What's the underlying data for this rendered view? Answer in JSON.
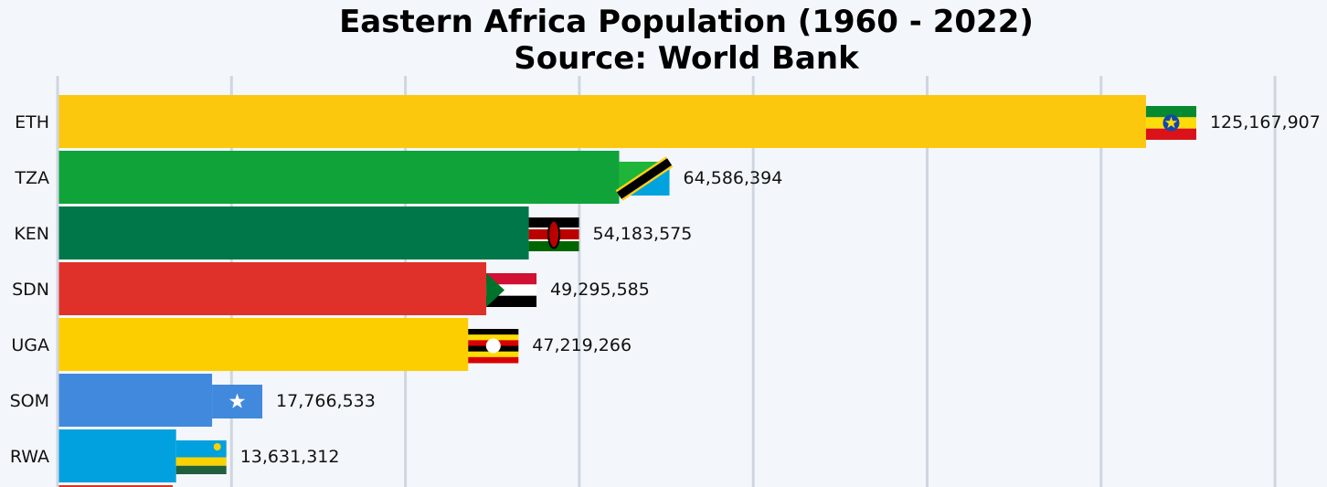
{
  "chart_data": {
    "type": "bar",
    "orientation": "horizontal",
    "title": "Eastern Africa Population (1960 - 2022)",
    "subtitle": "Source: World Bank",
    "categories": [
      "ETH",
      "TZA",
      "KEN",
      "SDN",
      "UGA",
      "SOM",
      "RWA"
    ],
    "values": [
      125167907,
      64586394,
      54183575,
      49295585,
      47219266,
      17766533,
      13631312
    ],
    "value_labels": [
      "125,167,907",
      "64,586,394",
      "54,183,575",
      "49,295,585",
      "47,219,266",
      "17,766,533",
      "13,631,312"
    ],
    "colors": [
      "#fcc80e",
      "#10a33a",
      "#007748",
      "#e0302a",
      "#fcce00",
      "#4189dd",
      "#00a1de"
    ],
    "flags": [
      "ethiopia-flag",
      "tanzania-flag",
      "kenya-flag",
      "sudan-flag",
      "uganda-flag",
      "somalia-flag",
      "rwanda-flag"
    ],
    "xlim": [
      0,
      140000000
    ],
    "grid": "vertical",
    "partial_next_bar_color": "#e0302a"
  }
}
